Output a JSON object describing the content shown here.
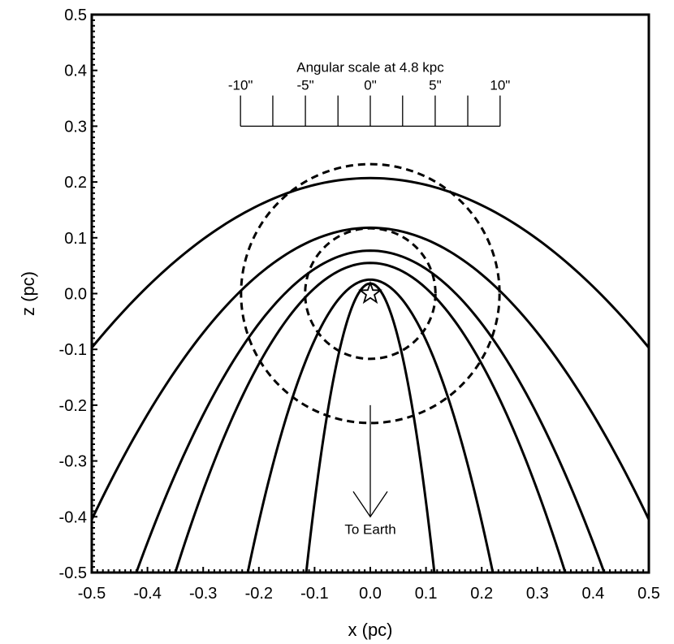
{
  "chart_data": {
    "type": "line",
    "xlabel": "x  (pc)",
    "ylabel": "z (pc)",
    "xlim": [
      -0.5,
      0.5
    ],
    "ylim": [
      -0.5,
      0.5
    ],
    "x_ticks": [
      "-0.5",
      "-0.4",
      "-0.3",
      "-0.2",
      "-0.1",
      "0.0",
      "0.1",
      "0.2",
      "0.3",
      "0.4",
      "0.5"
    ],
    "y_ticks": [
      "0.5",
      "0.4",
      "0.3",
      "0.2",
      "0.1",
      "0.0",
      "-0.1",
      "-0.2",
      "-0.3",
      "-0.4",
      "-0.5"
    ],
    "grid": false,
    "bow_shocks": [
      {
        "apex": 0.207,
        "x": [
          -0.5,
          0.5
        ],
        "z_at_edge": -0.097
      },
      {
        "apex": 0.118,
        "x": [
          -0.5,
          0.5
        ],
        "z_at_edge": -0.405
      },
      {
        "apex": 0.077,
        "x": [
          -0.42,
          0.42
        ],
        "z_at_edge": -0.5
      },
      {
        "apex": 0.055,
        "x": [
          -0.35,
          0.35
        ],
        "z_at_edge": -0.5
      },
      {
        "apex": 0.025,
        "x": [
          -0.22,
          0.22
        ],
        "z_at_edge": -0.5
      },
      {
        "apex": 0.018,
        "x": [
          -0.115,
          0.115
        ],
        "z_at_edge": -0.5
      }
    ],
    "circles": [
      {
        "center": [
          0,
          0
        ],
        "radius": 0.232,
        "style": "dashed"
      },
      {
        "center": [
          0,
          0
        ],
        "radius": 0.117,
        "style": "dashed"
      }
    ],
    "star": {
      "x": 0.0,
      "z": 0.0
    },
    "angular_scale": {
      "title": "Angular scale at 4.8 kpc",
      "labels": [
        "-10\"",
        "-5\"",
        "0\"",
        "5\"",
        "10\""
      ],
      "label_x": [
        -0.233,
        -0.1165,
        0.0,
        0.1165,
        0.233
      ],
      "ticks_x": [
        -0.233,
        -0.175,
        -0.1165,
        -0.058,
        0.0,
        0.058,
        0.1165,
        0.175,
        0.233
      ],
      "bar_z": 0.3,
      "tick_top_z": 0.355
    },
    "arrow": {
      "label": "To Earth",
      "x": 0.0,
      "from_z": -0.2,
      "to_z": -0.4
    }
  }
}
